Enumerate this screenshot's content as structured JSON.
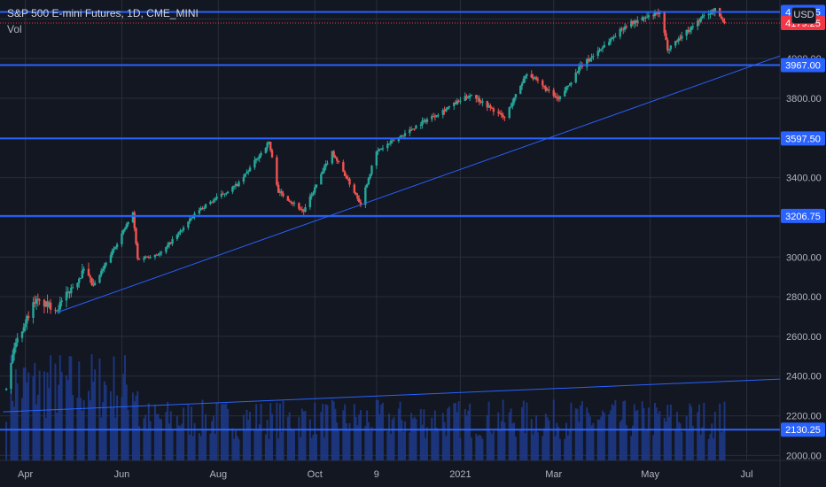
{
  "header": {
    "title": "S&P 500 E-mini Futures, 1D, CME_MINI",
    "volume_label": "Vol"
  },
  "currency": "USD",
  "colors": {
    "background": "#131722",
    "grid": "#2a2e39",
    "up": "#26a69a",
    "down": "#ef5350",
    "level_line": "#2962ff",
    "trend_line": "#2962ff",
    "volume_bar": "#1e3a8a",
    "axis_text": "#b2b5be",
    "last_price_tag": "#f23645"
  },
  "chart_data": {
    "type": "candlestick",
    "title": "S&P 500 E-mini Futures, 1D, CME_MINI",
    "y_axis": {
      "ticks": [
        2000,
        2200,
        2400,
        2600,
        2800,
        3000,
        3200,
        3400,
        3600,
        3800,
        4000,
        4200
      ],
      "range": [
        1975,
        4295
      ],
      "position": "right"
    },
    "x_axis": {
      "ticks": [
        "Apr",
        "Jun",
        "Aug",
        "Oct",
        "9",
        "2021",
        "Mar",
        "May",
        "Jul"
      ]
    },
    "grid": true,
    "horizontal_levels": [
      {
        "price": 4234.75,
        "label": "4234.75"
      },
      {
        "price": 3967.0,
        "label": "3967.00"
      },
      {
        "price": 3597.5,
        "label": "3597.50"
      },
      {
        "price": 3206.75,
        "label": "3206.75"
      },
      {
        "price": 2130.25,
        "label": "2130.25"
      }
    ],
    "last_price": {
      "price": 4179.25,
      "label": "4179.25"
    },
    "trend_lines": [
      {
        "from": {
          "date": "2020-04-21",
          "price": 2720
        },
        "to": {
          "date": "2021-07-22",
          "price": 4013
        }
      },
      {
        "from": {
          "date": "2020-03-18",
          "price": 2220
        },
        "to": {
          "date": "2021-07-22",
          "price": 2385
        }
      }
    ],
    "price_path": [
      {
        "date": "2020-03-20",
        "price": 2330
      },
      {
        "date": "2020-03-25",
        "price": 2550
      },
      {
        "date": "2020-04-07",
        "price": 2780
      },
      {
        "date": "2020-04-21",
        "price": 2740
      },
      {
        "date": "2020-05-08",
        "price": 2930
      },
      {
        "date": "2020-05-14",
        "price": 2850
      },
      {
        "date": "2020-06-08",
        "price": 3220
      },
      {
        "date": "2020-06-11",
        "price": 2990
      },
      {
        "date": "2020-06-26",
        "price": 3020
      },
      {
        "date": "2020-07-20",
        "price": 3240
      },
      {
        "date": "2020-08-14",
        "price": 3370
      },
      {
        "date": "2020-09-02",
        "price": 3580
      },
      {
        "date": "2020-09-08",
        "price": 3330
      },
      {
        "date": "2020-09-24",
        "price": 3230
      },
      {
        "date": "2020-10-12",
        "price": 3530
      },
      {
        "date": "2020-10-30",
        "price": 3270
      },
      {
        "date": "2020-11-09",
        "price": 3530
      },
      {
        "date": "2020-12-08",
        "price": 3680
      },
      {
        "date": "2021-01-08",
        "price": 3820
      },
      {
        "date": "2021-01-29",
        "price": 3700
      },
      {
        "date": "2021-02-12",
        "price": 3930
      },
      {
        "date": "2021-03-04",
        "price": 3790
      },
      {
        "date": "2021-03-17",
        "price": 3950
      },
      {
        "date": "2021-04-16",
        "price": 4170
      },
      {
        "date": "2021-05-07",
        "price": 4230
      },
      {
        "date": "2021-05-12",
        "price": 4050
      },
      {
        "date": "2021-06-04",
        "price": 4215
      },
      {
        "date": "2021-06-11",
        "price": 4245
      },
      {
        "date": "2021-06-17",
        "price": 4179.25
      }
    ]
  }
}
